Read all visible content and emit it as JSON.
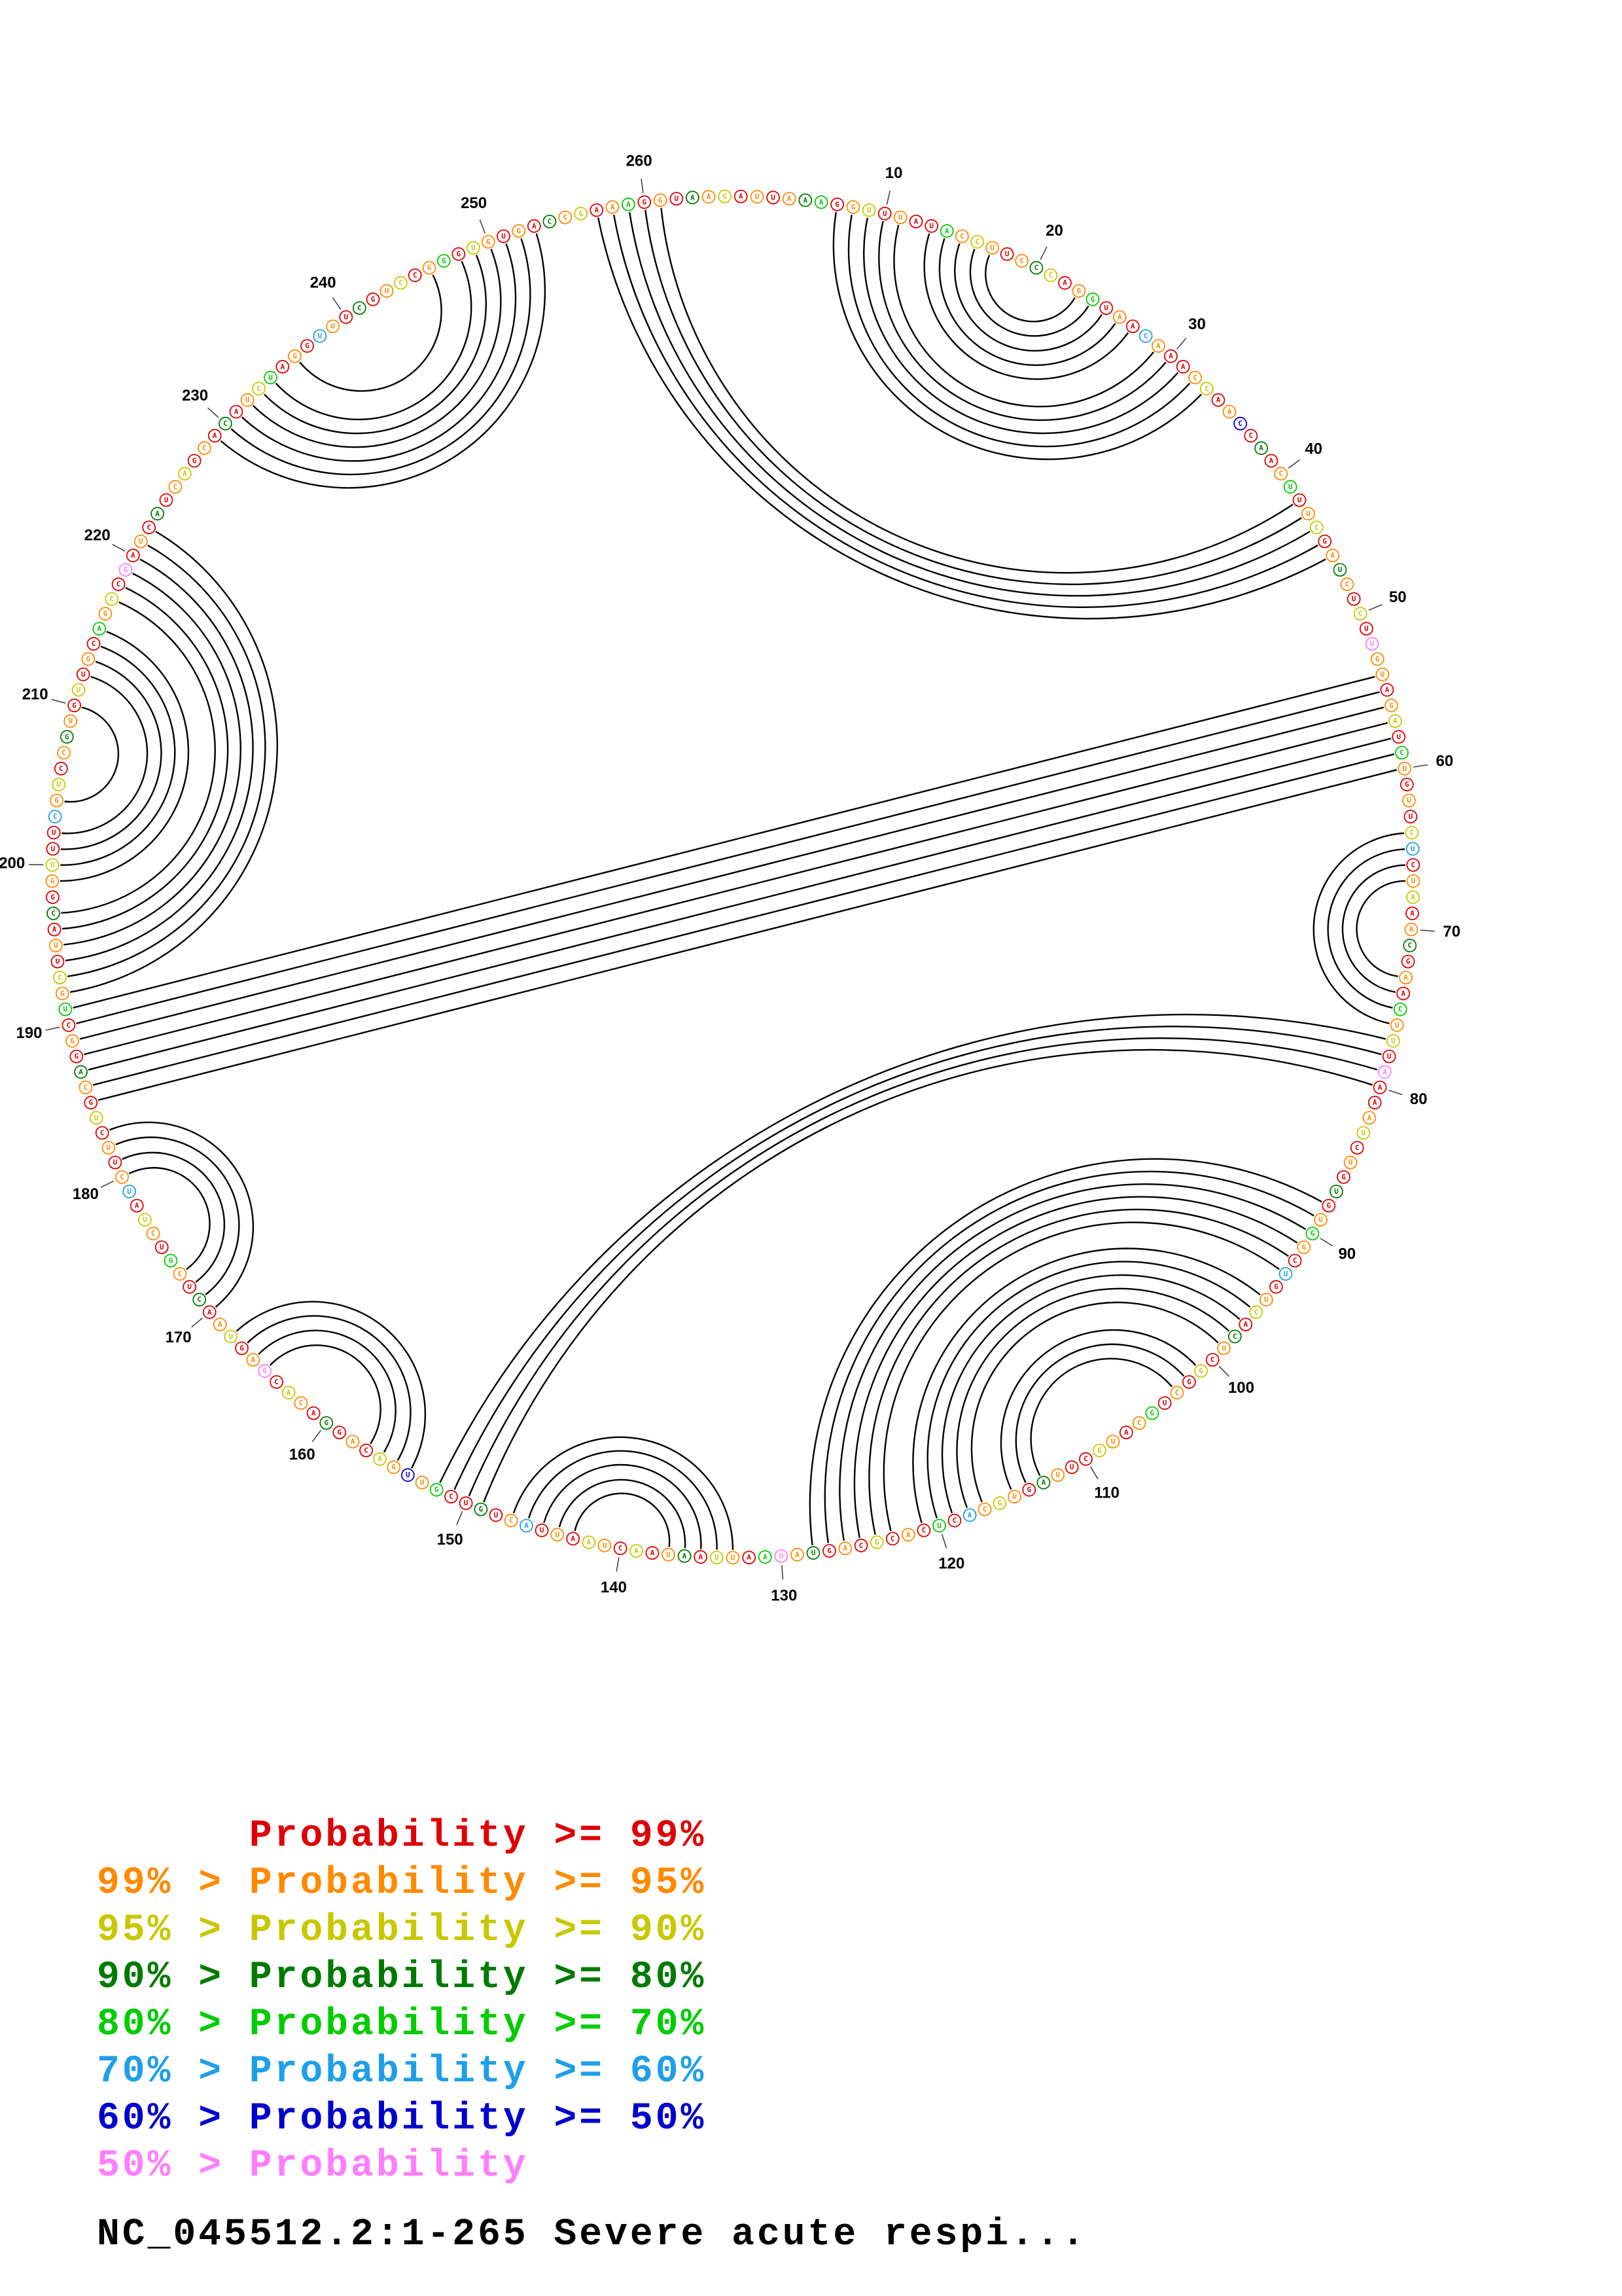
{
  "figure": {
    "title": "NC_045512.2:1-265 Severe acute respi...",
    "length": 265,
    "sequence": "AUUAAAGGUUUAUACCUUCCCAGGUAACAAACCAACCAACUUUCGAUCUCUUGUAGAUCUGUUCUCUAAACGAACUUUAAAAUCUGUGUGGCUGUCACUCGGCUGCAUGCUUAGUGCACUCACGCAGUAUAAUUAAUAACUAAUUACUGUCGUUGACAGGACACGAGUAACUCGUCUAUCUUCUGCAGGCUGCUUACGGUUUCGUCCGUGUUGCAGCCGAUCAUCAGCACAUCUAGGUUUCGUCCGGGUGUGACCGAAAGGUAAG",
    "tick_interval": 10,
    "tick_labels": [
      10,
      20,
      30,
      40,
      50,
      60,
      70,
      80,
      90,
      100,
      110,
      120,
      130,
      140,
      150,
      160,
      170,
      180,
      190,
      200,
      210,
      220,
      230,
      240,
      250,
      260
    ],
    "pairs": [
      [
        7,
        33
      ],
      [
        8,
        32
      ],
      [
        9,
        31
      ],
      [
        10,
        30
      ],
      [
        11,
        29
      ],
      [
        13,
        27
      ],
      [
        14,
        26
      ],
      [
        15,
        25
      ],
      [
        16,
        24
      ],
      [
        17,
        23
      ],
      [
        257,
        46
      ],
      [
        258,
        45
      ],
      [
        259,
        44
      ],
      [
        260,
        43
      ],
      [
        261,
        42
      ],
      [
        54,
        191
      ],
      [
        55,
        190
      ],
      [
        56,
        189
      ],
      [
        57,
        188
      ],
      [
        58,
        187
      ],
      [
        59,
        186
      ],
      [
        60,
        185
      ],
      [
        64,
        76
      ],
      [
        65,
        75
      ],
      [
        66,
        74
      ],
      [
        67,
        73
      ],
      [
        77,
        152
      ],
      [
        78,
        151
      ],
      [
        79,
        150
      ],
      [
        80,
        149
      ],
      [
        88,
        128
      ],
      [
        89,
        127
      ],
      [
        90,
        126
      ],
      [
        91,
        125
      ],
      [
        92,
        124
      ],
      [
        93,
        123
      ],
      [
        95,
        121
      ],
      [
        96,
        120
      ],
      [
        97,
        119
      ],
      [
        98,
        118
      ],
      [
        99,
        117
      ],
      [
        101,
        115
      ],
      [
        102,
        114
      ],
      [
        103,
        113
      ],
      [
        133,
        147
      ],
      [
        134,
        146
      ],
      [
        135,
        145
      ],
      [
        136,
        144
      ],
      [
        137,
        143
      ],
      [
        154,
        168
      ],
      [
        155,
        167
      ],
      [
        156,
        166
      ],
      [
        157,
        165
      ],
      [
        170,
        183
      ],
      [
        171,
        182
      ],
      [
        172,
        181
      ],
      [
        173,
        180
      ],
      [
        192,
        222
      ],
      [
        193,
        221
      ],
      [
        194,
        220
      ],
      [
        195,
        219
      ],
      [
        196,
        218
      ],
      [
        197,
        217
      ],
      [
        199,
        215
      ],
      [
        200,
        214
      ],
      [
        201,
        213
      ],
      [
        202,
        212
      ],
      [
        204,
        210
      ],
      [
        229,
        253
      ],
      [
        230,
        252
      ],
      [
        231,
        251
      ],
      [
        232,
        250
      ],
      [
        233,
        249
      ],
      [
        234,
        248
      ],
      [
        236,
        246
      ]
    ],
    "classes": [
      {
        "name": "prob_ge_99",
        "color": "#dd0004"
      },
      {
        "name": "prob_95_99",
        "color": "#ff8a00"
      },
      {
        "name": "prob_90_95",
        "color": "#c8c800"
      },
      {
        "name": "prob_80_90",
        "color": "#007a00"
      },
      {
        "name": "prob_70_80",
        "color": "#00cc00"
      },
      {
        "name": "prob_60_70",
        "color": "#1f9fe8"
      },
      {
        "name": "prob_50_60",
        "color": "#0000cc"
      },
      {
        "name": "prob_lt_50",
        "color": "#ff7dff"
      }
    ],
    "nucleotide_classes": "0101340120100412101320140105100120160301401201310207110120410102501201301041207001201030141050120310201041012001301215040102010317401203102012010510300416120103012071021030140120510102013010412010301200512013102010412070103012010301240105103012014021010312014010312",
    "arc_color": "#000000"
  },
  "legend": {
    "lines": [
      {
        "text": "      Probability >= 99%",
        "color": "#dd0004"
      },
      {
        "text": "99% > Probability >= 95%",
        "color": "#ff8a00"
      },
      {
        "text": "95% > Probability >= 90%",
        "color": "#c8c800"
      },
      {
        "text": "90% > Probability >= 80%",
        "color": "#007a00"
      },
      {
        "text": "80% > Probability >= 70%",
        "color": "#00cc00"
      },
      {
        "text": "70% > Probability >= 60%",
        "color": "#1f9fe8"
      },
      {
        "text": "60% > Probability >= 50%",
        "color": "#0000cc"
      },
      {
        "text": "50% > Probability",
        "color": "#ff7dff"
      }
    ]
  }
}
